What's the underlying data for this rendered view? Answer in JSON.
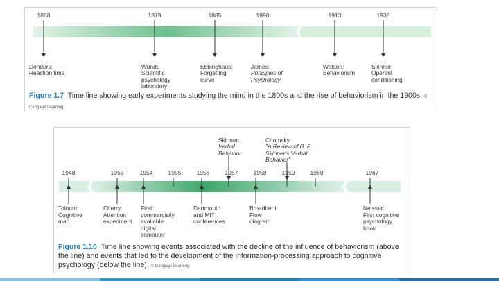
{
  "figure1": {
    "years": [
      "1868",
      "1879",
      "1885",
      "1890",
      "1913",
      "1938"
    ],
    "events": [
      {
        "line1": "Donders:",
        "line2": "Reaction time",
        "italic": ""
      },
      {
        "line1": "Wundt:",
        "line2": "Scientific\npsychology\nlaboratory",
        "italic": ""
      },
      {
        "line1": "Ebbinghaus:",
        "line2": "Forgetting\ncurve",
        "italic": ""
      },
      {
        "line1": "James:",
        "line2": "",
        "italic": "Principles of\nPsychology"
      },
      {
        "line1": "Watson:",
        "line2": "Behaviorism",
        "italic": ""
      },
      {
        "line1": "Skinner:",
        "line2": "Operant\nconditioning",
        "italic": ""
      }
    ],
    "caption_label": "Figure 1.7",
    "caption_text": "Time line showing early experiments studying the mind in the 1800s and the rise of behaviorism in the 1900s.",
    "credit": "© Cengage Learning"
  },
  "figure2": {
    "years": [
      "1948",
      "1953",
      "1954",
      "1955",
      "1956",
      "1957",
      "1958",
      "1959",
      "1960",
      "1967"
    ],
    "above_events": [
      {
        "line1": "Skinner:",
        "italic": "Verbal\nBehavior"
      },
      {
        "line1": "Chomsky:",
        "italic": "\"A Review of B. F.\nSkinner's Verbal\nBehavior\""
      }
    ],
    "below_events": [
      {
        "text": "Tolman:\nCognitive\nmap"
      },
      {
        "text": "Cherry:\nAttention\nexperiment"
      },
      {
        "text": "First\ncommercially\navailable\ndigital\ncomputer"
      },
      {
        "text": "Dartmouth\nand MIT\nconferences"
      },
      {
        "text": "Broadbent:\nFlow\ndiagram"
      },
      {
        "text": "Neisser:\nFirst cognitive\npsychology\nbook"
      }
    ],
    "caption_label": "Figure 1.10",
    "caption_text": "Time line showing events associated with the decline of the influence of behaviorism (above the line) and events that led to the development of the information-processing approach to cognitive psychology (below the line).",
    "credit": "© Cengage Learning"
  },
  "colors": {
    "bar_light": "#dcefe3",
    "bar_dark": "#2f9a5c",
    "caption_label": "#2a7fc1",
    "footer": [
      "#7fc6ea",
      "#2b9bd6",
      "#1f7fc0",
      "#2a8fd0",
      "#1a6fb0"
    ]
  }
}
